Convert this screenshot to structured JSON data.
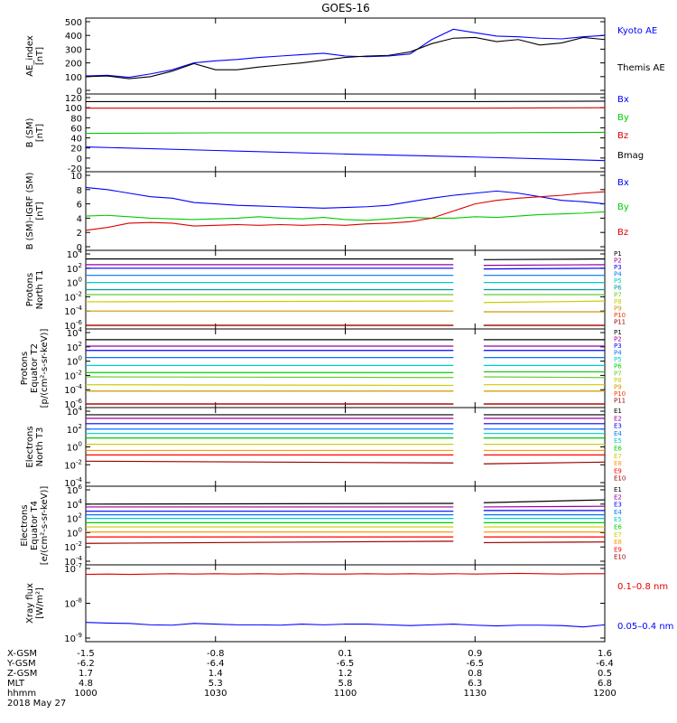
{
  "title": "GOES-16",
  "colors": {
    "black": "#000000",
    "blue": "#0000ff",
    "green": "#00cc00",
    "red": "#dd0000",
    "navy": "#000080",
    "darkred": "#990000",
    "cyan": "#00cccc",
    "teal": "#009999",
    "yellow": "#cccc00",
    "orange": "#ff9900",
    "lightgreen": "#66cc33"
  },
  "chart_data": [
    {
      "type": "line",
      "ylabel": "AE_index\n[nT]",
      "ylim": [
        0,
        500
      ],
      "yticks": [
        "0",
        "100",
        "200",
        "300",
        "400",
        "500"
      ],
      "legend": [
        {
          "name": "Kyoto AE",
          "color": "#0000ff"
        },
        {
          "name": "Themis AE",
          "color": "#000000"
        }
      ],
      "x": [
        1000,
        1005,
        1010,
        1015,
        1020,
        1025,
        1030,
        1035,
        1040,
        1045,
        1050,
        1055,
        1100,
        1105,
        1110,
        1115,
        1120,
        1125,
        1130,
        1135,
        1140,
        1145,
        1150,
        1155,
        1200
      ],
      "series": [
        {
          "name": "Kyoto AE",
          "color": "#0000ff",
          "values": [
            105,
            110,
            95,
            120,
            150,
            200,
            215,
            225,
            240,
            250,
            260,
            270,
            250,
            245,
            250,
            265,
            370,
            445,
            420,
            395,
            390,
            380,
            375,
            390,
            400
          ]
        },
        {
          "name": "Themis AE",
          "color": "#000000",
          "values": [
            100,
            105,
            85,
            100,
            140,
            195,
            150,
            150,
            170,
            185,
            200,
            220,
            240,
            250,
            255,
            280,
            340,
            380,
            385,
            355,
            370,
            330,
            345,
            385,
            370
          ]
        }
      ]
    },
    {
      "type": "line",
      "ylabel": "B (SM)\n[nT]",
      "ylim": [
        -20,
        120
      ],
      "yticks": [
        "-20",
        "0",
        "20",
        "40",
        "60",
        "80",
        "100",
        "120"
      ],
      "legend": [
        {
          "name": "Bx",
          "color": "#0000ff"
        },
        {
          "name": "By",
          "color": "#00cc00"
        },
        {
          "name": "Bz",
          "color": "#dd0000"
        },
        {
          "name": "Bmag",
          "color": "#000000"
        }
      ],
      "x": [
        1000,
        1030,
        1100,
        1130,
        1200
      ],
      "series": [
        {
          "name": "Bx",
          "color": "#0000ff",
          "values": [
            22,
            15,
            8,
            2,
            -5
          ]
        },
        {
          "name": "By",
          "color": "#00cc00",
          "values": [
            49,
            50,
            50,
            50,
            51
          ]
        },
        {
          "name": "Bz",
          "color": "#dd0000",
          "values": [
            99,
            99,
            99,
            99,
            100
          ]
        },
        {
          "name": "Bmag",
          "color": "#000000",
          "values": [
            112,
            112,
            112,
            112,
            113
          ]
        }
      ]
    },
    {
      "type": "line",
      "ylabel": "B (SM)-IGRF (SM)\n[nT]",
      "ylim": [
        0,
        10
      ],
      "yticks": [
        "0",
        "2",
        "4",
        "6",
        "8",
        "10"
      ],
      "legend": [
        {
          "name": "Bx",
          "color": "#0000ff"
        },
        {
          "name": "By",
          "color": "#00cc00"
        },
        {
          "name": "Bz",
          "color": "#dd0000"
        }
      ],
      "x": [
        1000,
        1005,
        1010,
        1015,
        1020,
        1025,
        1030,
        1035,
        1040,
        1045,
        1050,
        1055,
        1100,
        1105,
        1110,
        1115,
        1120,
        1125,
        1130,
        1135,
        1140,
        1145,
        1150,
        1155,
        1200
      ],
      "series": [
        {
          "name": "Bx",
          "color": "#0000ff",
          "values": [
            8.3,
            8.0,
            7.5,
            7.0,
            6.8,
            6.2,
            6.0,
            5.8,
            5.7,
            5.6,
            5.5,
            5.4,
            5.5,
            5.6,
            5.8,
            6.3,
            6.8,
            7.2,
            7.5,
            7.8,
            7.5,
            7.0,
            6.5,
            6.3,
            6.0
          ]
        },
        {
          "name": "By",
          "color": "#00cc00",
          "values": [
            4.3,
            4.4,
            4.2,
            4.0,
            3.9,
            3.8,
            3.9,
            4.0,
            4.2,
            4.0,
            3.9,
            4.1,
            3.8,
            3.7,
            3.9,
            4.1,
            4.0,
            4.0,
            4.2,
            4.1,
            4.3,
            4.5,
            4.6,
            4.7,
            4.9
          ]
        },
        {
          "name": "Bz",
          "color": "#dd0000",
          "values": [
            2.3,
            2.7,
            3.3,
            3.4,
            3.3,
            2.9,
            3.0,
            3.1,
            3.0,
            3.1,
            3.0,
            3.1,
            3.0,
            3.2,
            3.3,
            3.5,
            4.0,
            5.0,
            6.0,
            6.5,
            6.8,
            7.0,
            7.2,
            7.5,
            7.7
          ]
        }
      ]
    },
    {
      "type": "line",
      "scale": "log",
      "ylabel": "Protons\nNorth T1",
      "ylim_exp": [
        -6,
        4
      ],
      "yticks": [
        "10",
        "10",
        "10",
        "10",
        "10",
        "10"
      ],
      "ytick_exponents": [
        "4",
        "2",
        "0",
        "-2",
        "-4",
        "-6"
      ],
      "gap": [
        1125,
        1132
      ],
      "legend": [
        "P1",
        "P2",
        "P3",
        "P4",
        "P5",
        "P6",
        "P7",
        "P8",
        "P9",
        "P10",
        "P11"
      ],
      "series": [
        {
          "name": "P1",
          "color": "#000000",
          "log_values": [
            3.3,
            3.3,
            3.2,
            3.3
          ]
        },
        {
          "name": "P2",
          "color": "#990099",
          "log_values": [
            2.5,
            2.5,
            2.4,
            2.5
          ]
        },
        {
          "name": "P3",
          "color": "#0000ff",
          "log_values": [
            2.0,
            2.0,
            1.9,
            2.0
          ]
        },
        {
          "name": "P4",
          "color": "#0077ff",
          "log_values": [
            1.0,
            1.0,
            1.0,
            1.0
          ]
        },
        {
          "name": "P5",
          "color": "#00cccc",
          "log_values": [
            0.0,
            0.0,
            0.0,
            0.0
          ]
        },
        {
          "name": "P6",
          "color": "#009999",
          "log_values": [
            -1.0,
            -1.0,
            -1.0,
            -1.0
          ]
        },
        {
          "name": "P7",
          "color": "#66cc33",
          "log_values": [
            -1.7,
            -1.7,
            -1.7,
            -1.7
          ]
        },
        {
          "name": "P8",
          "color": "#cccc00",
          "log_values": [
            -2.7,
            -2.6,
            -2.8,
            -2.6
          ]
        },
        {
          "name": "P9",
          "color": "#cc9900",
          "log_values": [
            -4.0,
            -4.0,
            -4.1,
            -4.1
          ]
        },
        {
          "name": "P10",
          "color": "#ff3300",
          "log_values": [
            -6.0,
            -6.0,
            -6.0,
            -6.0
          ]
        },
        {
          "name": "P11",
          "color": "#990000",
          "log_values": [
            -6.0,
            -6.0,
            -6.0,
            -6.0
          ]
        }
      ]
    },
    {
      "type": "line",
      "scale": "log",
      "ylabel": "Protons\nEquator T2\n[p/(cm²-s-sr-keV)]",
      "ylim_exp": [
        -6,
        4
      ],
      "yticks": [
        "10",
        "10",
        "10",
        "10",
        "10",
        "10"
      ],
      "ytick_exponents": [
        "4",
        "2",
        "0",
        "-2",
        "-4",
        "-6"
      ],
      "gap": [
        1125,
        1132
      ],
      "legend": [
        "P1",
        "P2",
        "P3",
        "P4",
        "P5",
        "P6",
        "P7",
        "P8",
        "P9",
        "P10",
        "P11"
      ],
      "series": [
        {
          "name": "P1",
          "color": "#000000",
          "log_values": [
            3.0,
            3.0,
            3.0,
            3.0
          ]
        },
        {
          "name": "P2",
          "color": "#990099",
          "log_values": [
            2.1,
            2.1,
            2.1,
            2.1
          ]
        },
        {
          "name": "P3",
          "color": "#0000ff",
          "log_values": [
            1.5,
            1.5,
            1.5,
            1.5
          ]
        },
        {
          "name": "P4",
          "color": "#0077ff",
          "log_values": [
            0.5,
            0.5,
            0.5,
            0.5
          ]
        },
        {
          "name": "P5",
          "color": "#00cccc",
          "log_values": [
            -0.6,
            -0.6,
            -0.6,
            -0.6
          ]
        },
        {
          "name": "P6",
          "color": "#00cc00",
          "log_values": [
            -1.6,
            -1.6,
            -1.5,
            -1.5
          ]
        },
        {
          "name": "P7",
          "color": "#66cc33",
          "log_values": [
            -2.2,
            -2.3,
            -2.2,
            -2.3
          ]
        },
        {
          "name": "P8",
          "color": "#cccc00",
          "log_values": [
            -3.3,
            -3.4,
            -3.3,
            -3.3
          ]
        },
        {
          "name": "P9",
          "color": "#cc9900",
          "log_values": [
            -4.2,
            -4.2,
            -4.2,
            -4.2
          ]
        },
        {
          "name": "P10",
          "color": "#ff3300",
          "log_values": [
            -6.0,
            -6.0,
            -6.0,
            -6.0
          ]
        },
        {
          "name": "P11",
          "color": "#990000",
          "log_values": [
            -6.0,
            -6.0,
            -6.0,
            -6.0
          ]
        }
      ]
    },
    {
      "type": "line",
      "scale": "log",
      "ylabel": "Electrons\nNorth T3",
      "ylim_exp": [
        -4,
        4
      ],
      "yticks": [
        "10",
        "10",
        "10",
        "10",
        "10"
      ],
      "ytick_exponents": [
        "4",
        "2",
        "0",
        "-2",
        "-4"
      ],
      "gap": [
        1125,
        1132
      ],
      "legend": [
        "E1",
        "E2",
        "E3",
        "E4",
        "E5",
        "E6",
        "E7",
        "E8",
        "E9",
        "E10"
      ],
      "series": [
        {
          "name": "E1",
          "color": "#000000",
          "log_values": [
            3.6,
            3.6,
            3.6,
            3.6
          ]
        },
        {
          "name": "E2",
          "color": "#990099",
          "log_values": [
            3.2,
            3.2,
            3.2,
            3.2
          ]
        },
        {
          "name": "E3",
          "color": "#0000ff",
          "log_values": [
            2.6,
            2.6,
            2.6,
            2.6
          ]
        },
        {
          "name": "E4",
          "color": "#0077ff",
          "log_values": [
            2.0,
            2.0,
            2.0,
            2.0
          ]
        },
        {
          "name": "E5",
          "color": "#00cccc",
          "log_values": [
            1.5,
            1.5,
            1.5,
            1.5
          ]
        },
        {
          "name": "E6",
          "color": "#00cc00",
          "log_values": [
            1.0,
            1.0,
            1.0,
            1.0
          ]
        },
        {
          "name": "E7",
          "color": "#cccc00",
          "log_values": [
            0.3,
            0.3,
            0.3,
            0.3
          ]
        },
        {
          "name": "E8",
          "color": "#ff9900",
          "log_values": [
            -0.4,
            -0.4,
            -0.4,
            -0.4
          ]
        },
        {
          "name": "E9",
          "color": "#ff0000",
          "log_values": [
            -0.9,
            -0.9,
            -0.9,
            -0.9
          ]
        },
        {
          "name": "E10",
          "color": "#990000",
          "log_values": [
            -1.6,
            -1.8,
            -1.9,
            -1.7
          ]
        }
      ]
    },
    {
      "type": "line",
      "scale": "log",
      "ylabel": "Electrons\nEquator T4\n[e/(cm²-s-sr-keV)]",
      "ylim_exp": [
        -4,
        6
      ],
      "yticks": [
        "10",
        "10",
        "10",
        "10",
        "10",
        "10"
      ],
      "ytick_exponents": [
        "6",
        "4",
        "2",
        "0",
        "-2",
        "-4"
      ],
      "gap": [
        1125,
        1132
      ],
      "legend": [
        "E1",
        "E2",
        "E3",
        "E4",
        "E5",
        "E6",
        "E7",
        "E8",
        "E9",
        "E10"
      ],
      "series": [
        {
          "name": "E1",
          "color": "#000000",
          "log_values": [
            4.0,
            4.1,
            4.2,
            4.6
          ]
        },
        {
          "name": "E2",
          "color": "#990099",
          "log_values": [
            3.6,
            3.6,
            3.6,
            3.7
          ]
        },
        {
          "name": "E3",
          "color": "#0000ff",
          "log_values": [
            3.0,
            3.0,
            3.1,
            3.1
          ]
        },
        {
          "name": "E4",
          "color": "#0077ff",
          "log_values": [
            2.5,
            2.5,
            2.5,
            2.5
          ]
        },
        {
          "name": "E5",
          "color": "#00cccc",
          "log_values": [
            2.0,
            2.0,
            2.0,
            2.0
          ]
        },
        {
          "name": "E6",
          "color": "#00cc00",
          "log_values": [
            1.4,
            1.4,
            1.4,
            1.4
          ]
        },
        {
          "name": "E7",
          "color": "#cccc00",
          "log_values": [
            0.8,
            0.8,
            0.8,
            0.8
          ]
        },
        {
          "name": "E8",
          "color": "#ff9900",
          "log_values": [
            0.1,
            0.1,
            0.1,
            0.1
          ]
        },
        {
          "name": "E9",
          "color": "#ff0000",
          "log_values": [
            -0.6,
            -0.6,
            -0.6,
            -0.6
          ]
        },
        {
          "name": "E10",
          "color": "#990000",
          "log_values": [
            -1.5,
            -1.2,
            -1.4,
            -1.3
          ]
        }
      ]
    },
    {
      "type": "line",
      "scale": "log",
      "ylabel": "Xray flux\n[W/m²]",
      "ylim_exp": [
        -9,
        -7
      ],
      "yticks": [
        "10",
        "10",
        "10"
      ],
      "ytick_exponents": [
        "-7",
        "-8",
        "-9"
      ],
      "legend": [
        {
          "name": "0.1–0.8 nm",
          "color": "#dd0000"
        },
        {
          "name": "0.05–0.4 nm",
          "color": "#0000ff"
        }
      ],
      "x": [
        1000,
        1005,
        1010,
        1015,
        1020,
        1025,
        1030,
        1035,
        1040,
        1045,
        1050,
        1055,
        1100,
        1105,
        1110,
        1115,
        1120,
        1125,
        1130,
        1135,
        1140,
        1145,
        1150,
        1155,
        1200
      ],
      "series": [
        {
          "name": "0.1–0.8 nm",
          "color": "#dd0000",
          "log_values": [
            -7.17,
            -7.16,
            -7.17,
            -7.16,
            -7.15,
            -7.16,
            -7.15,
            -7.16,
            -7.15,
            -7.16,
            -7.15,
            -7.16,
            -7.16,
            -7.15,
            -7.16,
            -7.15,
            -7.16,
            -7.15,
            -7.16,
            -7.15,
            -7.14,
            -7.15,
            -7.16,
            -7.15,
            -7.15
          ]
        },
        {
          "name": "0.05–0.4 nm",
          "color": "#0000ff",
          "log_values": [
            -8.55,
            -8.57,
            -8.58,
            -8.62,
            -8.63,
            -8.58,
            -8.6,
            -8.62,
            -8.62,
            -8.63,
            -8.6,
            -8.62,
            -8.6,
            -8.6,
            -8.62,
            -8.64,
            -8.62,
            -8.6,
            -8.63,
            -8.65,
            -8.63,
            -8.63,
            -8.64,
            -8.68,
            -8.62
          ]
        }
      ]
    }
  ],
  "xaxis": {
    "row_labels": [
      "X-GSM",
      "Y-GSM",
      "Z-GSM",
      "MLT",
      "hhmm",
      "2018 May 27"
    ],
    "columns": [
      {
        "x": 1000,
        "values": [
          "-1.5",
          "-6.2",
          "1.7",
          "4.8",
          "1000"
        ]
      },
      {
        "x": 1030,
        "values": [
          "-0.8",
          "-6.4",
          "1.4",
          "5.3",
          "1030"
        ]
      },
      {
        "x": 1100,
        "values": [
          "0.1",
          "-6.5",
          "1.2",
          "5.8",
          "1100"
        ]
      },
      {
        "x": 1130,
        "values": [
          "0.9",
          "-6.5",
          "0.8",
          "6.3",
          "1130"
        ]
      },
      {
        "x": 1200,
        "values": [
          "1.6",
          "-6.4",
          "0.5",
          "6.8",
          "1200"
        ]
      }
    ]
  }
}
